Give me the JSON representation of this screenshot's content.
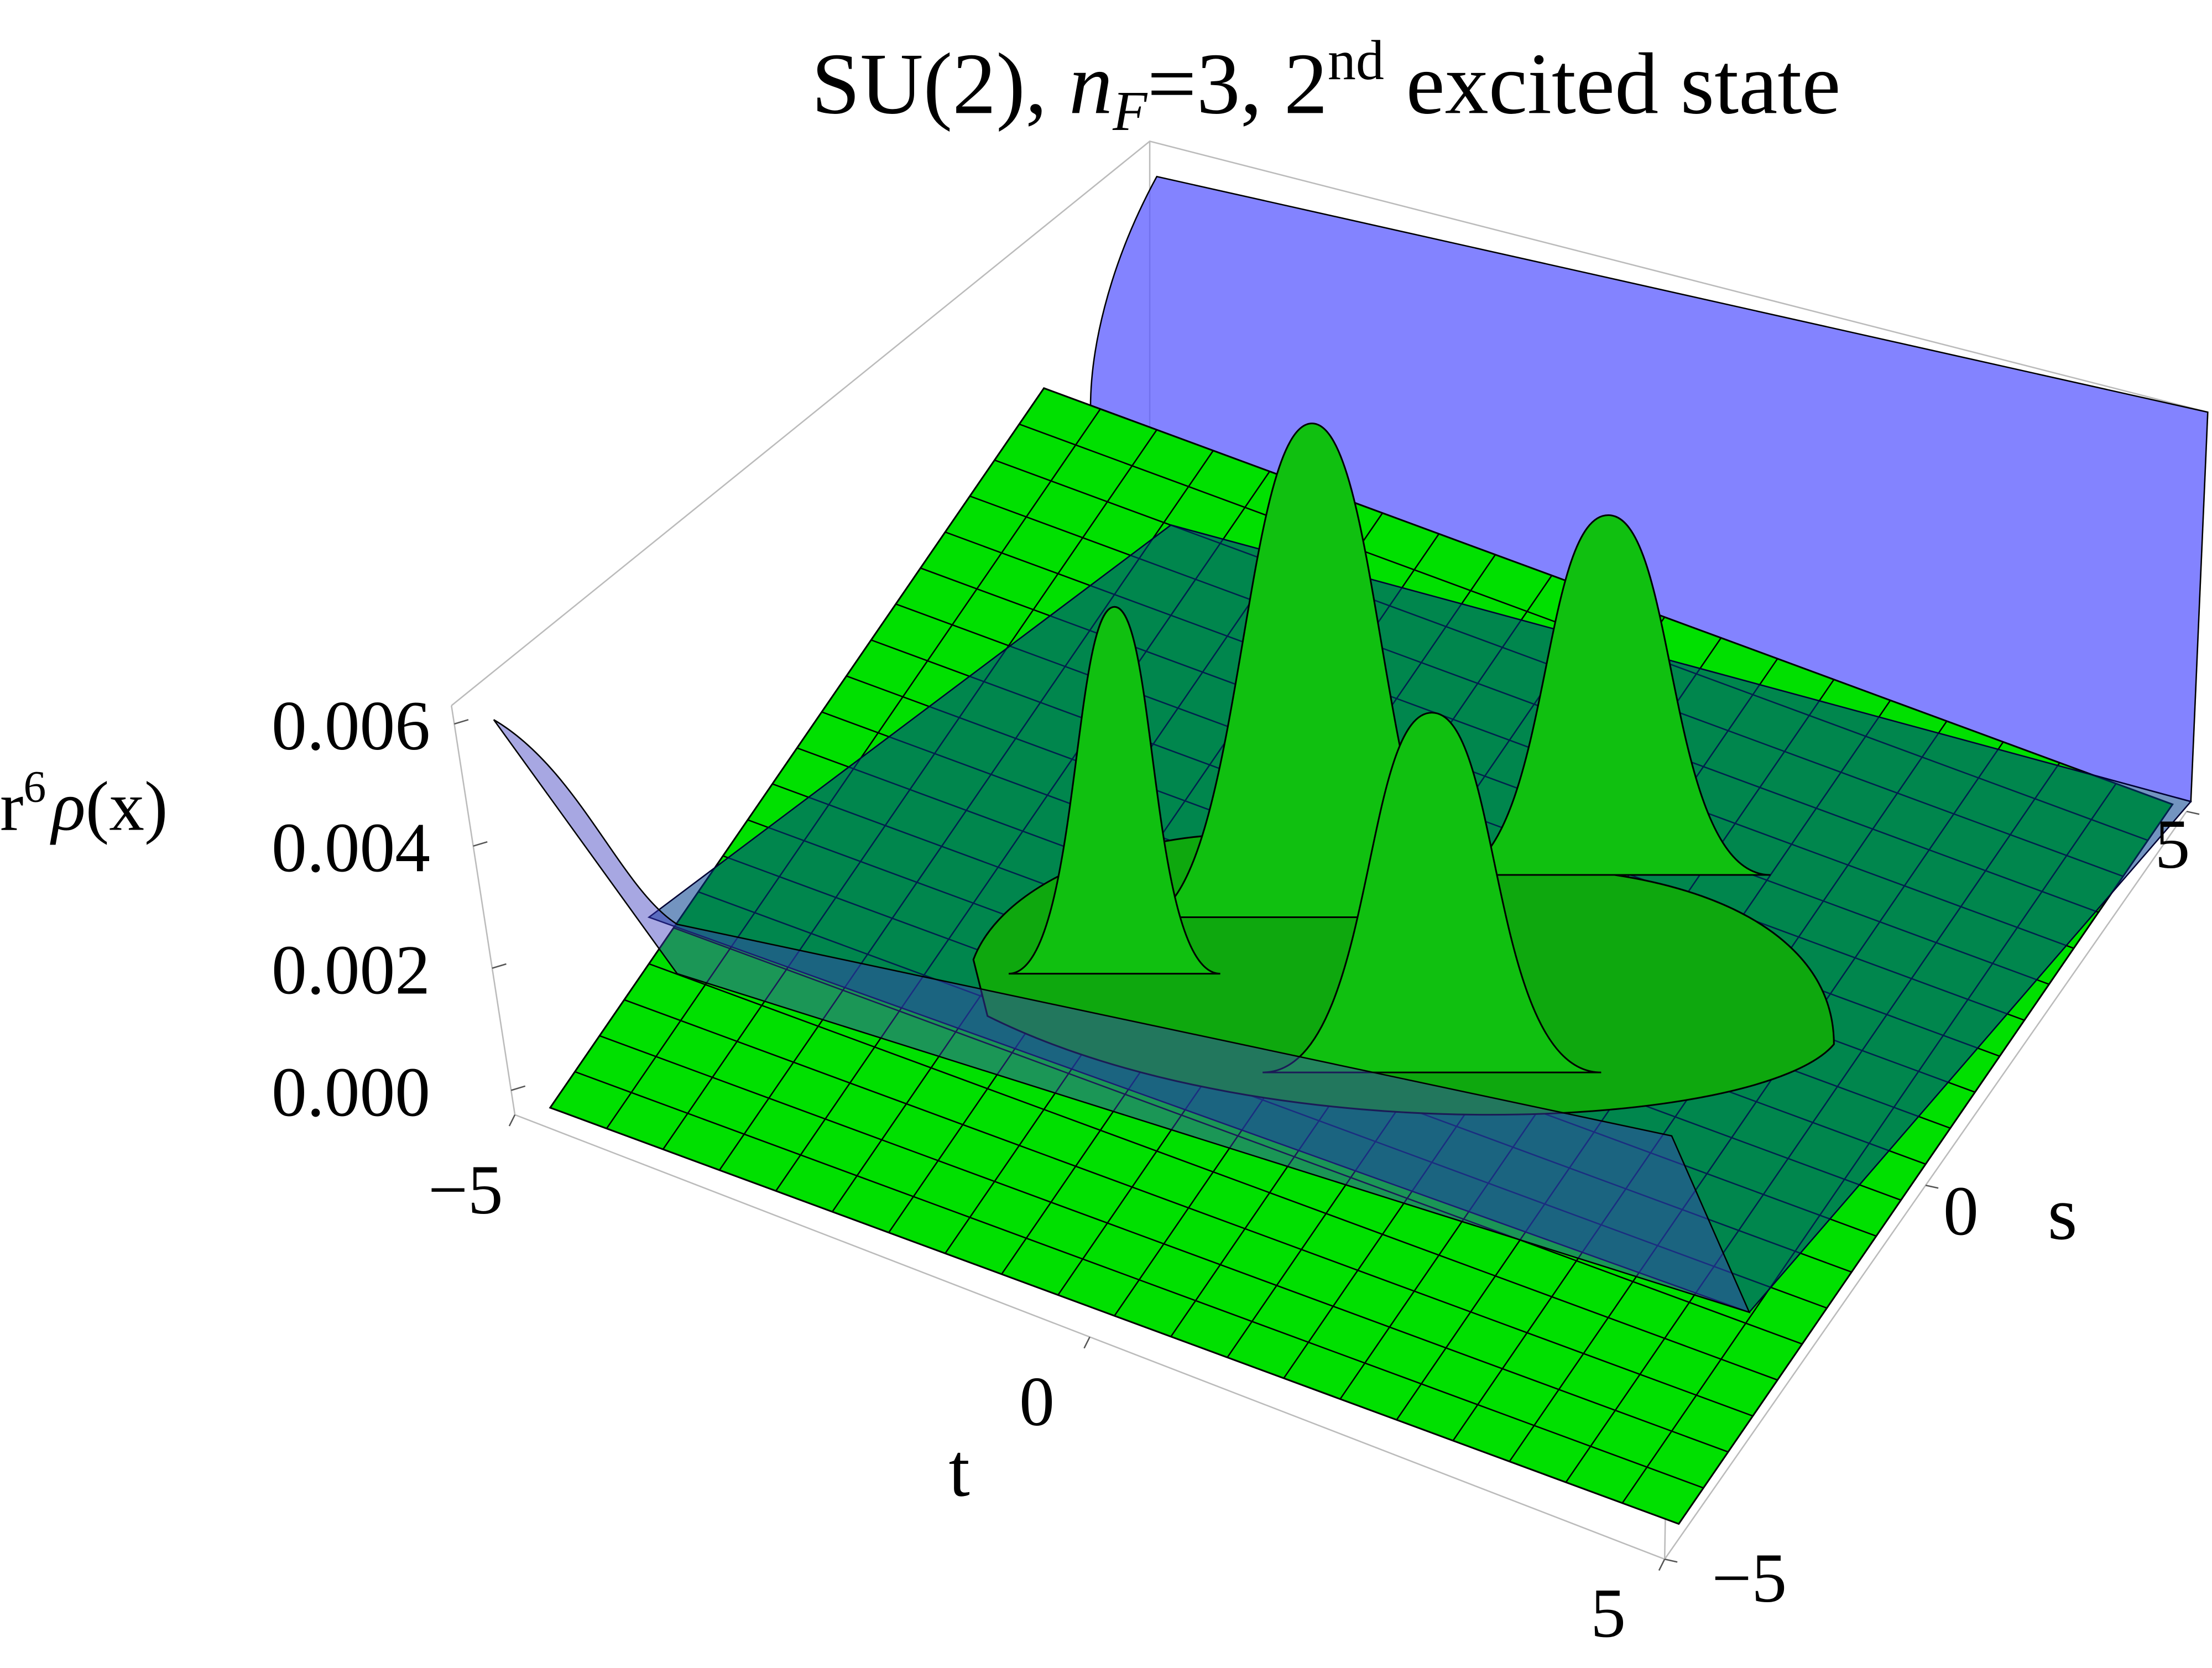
{
  "chart_data": {
    "type": "surface3d",
    "title_parts": [
      "SU(2), ",
      "n",
      "F",
      "=3, 2",
      "nd",
      " excited state"
    ],
    "xlabel": "t",
    "ylabel": "s",
    "zlabel_parts": [
      "r",
      "6",
      "ρ",
      "(x)"
    ],
    "xlim": [
      -5,
      5
    ],
    "xticks": [
      {
        "value": -5,
        "label": "−5"
      },
      0,
      5
    ],
    "ylim": [
      -5,
      5
    ],
    "yticks": [
      {
        "value": -5,
        "label": "−5"
      },
      0,
      5
    ],
    "zlim": [
      -0.0004,
      0.0063
    ],
    "zticks": [
      {
        "value": 0,
        "label": "0.000"
      },
      {
        "value": 0.002,
        "label": "0.002"
      },
      {
        "value": 0.004,
        "label": "0.004"
      },
      {
        "value": 0.006,
        "label": "0.006"
      }
    ],
    "series": [
      {
        "color": "#00e000"
      },
      {
        "color": "#6666ff"
      }
    ]
  }
}
